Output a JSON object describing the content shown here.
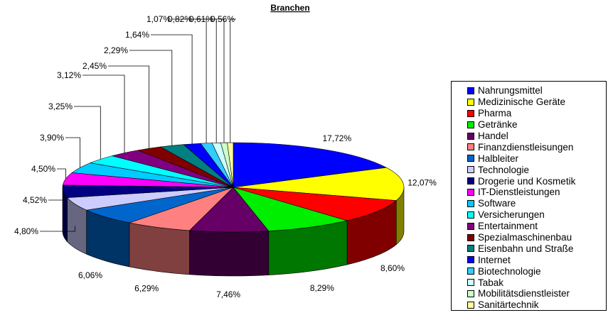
{
  "chart_data": {
    "type": "pie",
    "title": "Branchen",
    "legend_position": "right",
    "slices": [
      {
        "label": "Nahrungsmittel",
        "value": 17.72,
        "display": "17,72%",
        "color": "#0000ff"
      },
      {
        "label": "Medizinische Geräte",
        "value": 12.07,
        "display": "12,07%",
        "color": "#ffff00"
      },
      {
        "label": "Pharma",
        "value": 8.6,
        "display": "8,60%",
        "color": "#ff0000"
      },
      {
        "label": "Getränke",
        "value": 8.29,
        "display": "8,29%",
        "color": "#00ee00"
      },
      {
        "label": "Handel",
        "value": 7.46,
        "display": "7,46%",
        "color": "#660066"
      },
      {
        "label": "Finanzdienstleisungen",
        "value": 6.29,
        "display": "6,29%",
        "color": "#ff8080"
      },
      {
        "label": "Halbleiter",
        "value": 6.06,
        "display": "6,06%",
        "color": "#0066cc"
      },
      {
        "label": "Technologie",
        "value": 4.8,
        "display": "4,80%",
        "color": "#ccccff"
      },
      {
        "label": "Drogerie und Kosmetik",
        "value": 4.52,
        "display": "4,52%",
        "color": "#000080"
      },
      {
        "label": "IT-Dienstleistungen",
        "value": 4.5,
        "display": "4,50%",
        "color": "#ff00ff"
      },
      {
        "label": "Software",
        "value": 3.9,
        "display": "3,90%",
        "color": "#00ccff"
      },
      {
        "label": "Versicherungen",
        "value": 3.25,
        "display": "3,25%",
        "color": "#00ffff"
      },
      {
        "label": "Entertainment",
        "value": 3.12,
        "display": "3,12%",
        "color": "#800080"
      },
      {
        "label": "Spezialmaschinenbau",
        "value": 2.45,
        "display": "2,45%",
        "color": "#800000"
      },
      {
        "label": "Eisenbahn und Straße",
        "value": 2.29,
        "display": "2,29%",
        "color": "#008080"
      },
      {
        "label": "Internet",
        "value": 1.64,
        "display": "1,64%",
        "color": "#0000ff"
      },
      {
        "label": "Biotechnologie",
        "value": 1.07,
        "display": "1,07%",
        "color": "#33ccff"
      },
      {
        "label": "Tabak",
        "value": 0.82,
        "display": "0,82%",
        "color": "#ccffff"
      },
      {
        "label": "Mobilitätsdienstleister",
        "value": 0.61,
        "display": "0,61%",
        "color": "#ccffcc"
      },
      {
        "label": "Sanitärtechnik",
        "value": 0.56,
        "display": "0,56%",
        "color": "#ffff99"
      }
    ]
  }
}
